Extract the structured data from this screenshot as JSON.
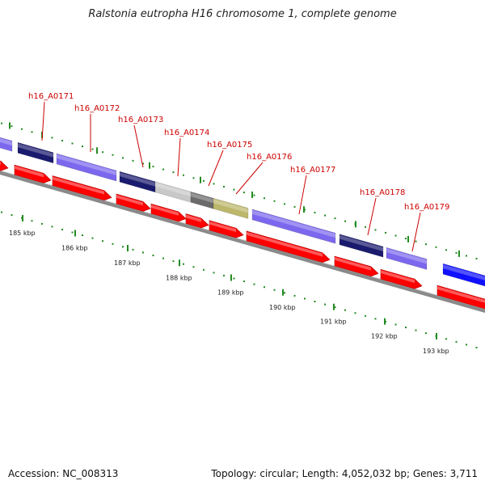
{
  "title": "Ralstonia eutropha H16 chromosome 1, complete genome",
  "footer": {
    "accession": "Accession: NC_008313",
    "summary": "Topology: circular; Length: 4,052,032 bp; Genes: 3,711"
  },
  "colors": {
    "cds": "#ff0000",
    "backbone": "#888888",
    "tick": "#228b22",
    "label": "#cc0000"
  },
  "genes": [
    {
      "id": "h16_A0171",
      "category_color": "#1a1a6e"
    },
    {
      "id": "h16_A0172",
      "category_color": "#7b68ee"
    },
    {
      "id": "h16_A0173",
      "category_color": "#1a1a6e"
    },
    {
      "id": "h16_A0174",
      "category_color": "#c8c8c8"
    },
    {
      "id": "h16_A0175",
      "category_color": "#6b6b6b"
    },
    {
      "id": "h16_A0176",
      "category_color": "#bdb76b"
    },
    {
      "id": "h16_A0177",
      "category_color": "#7b68ee"
    },
    {
      "id": "h16_A0178",
      "category_color": "#1a1a6e"
    },
    {
      "id": "h16_A0179",
      "category_color": "#7b68ee"
    }
  ],
  "kbp_labels": [
    "185 kbp",
    "186 kbp",
    "187 kbp",
    "188 kbp",
    "189 kbp",
    "190 kbp",
    "191 kbp",
    "192 kbp",
    "193 kbp"
  ]
}
